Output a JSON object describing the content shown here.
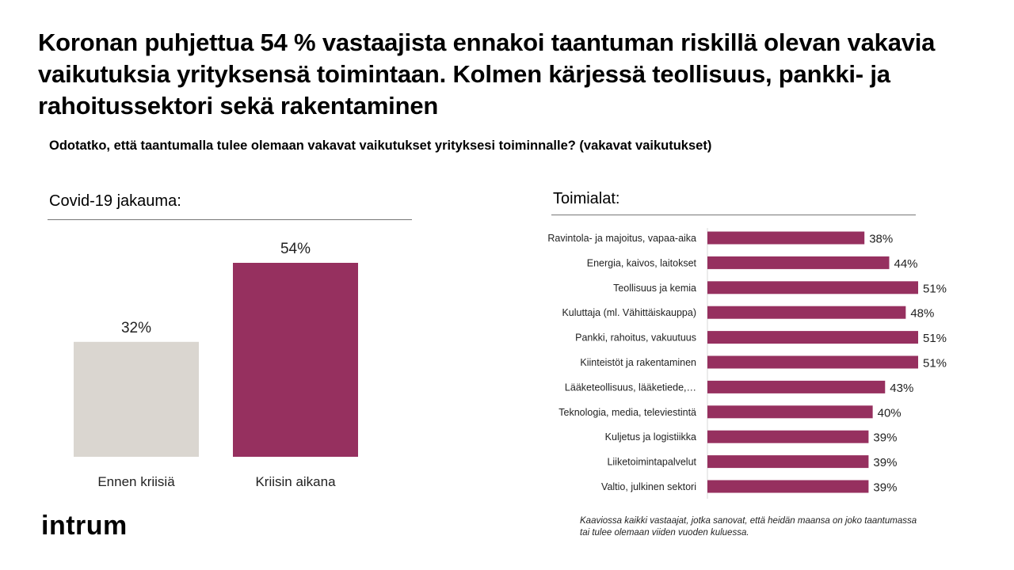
{
  "title": "Koronan puhjettua 54 % vastaajista ennakoi taantuman riskillä olevan vakavia vaikutuksia yrityksensä toimintaan. Kolmen kärjessä teollisuus, pankki- ja rahoitussektori sekä rakentaminen",
  "question": "Odotatko, että taantumalla tulee olemaan vakavat vaikutukset yrityksesi toiminnalle? (vakavat vaikutukset)",
  "footnote": "Kaaviossa kaikki vastaajat, jotka sanovat, että heidän maansa on joko taantumassa tai tulee olemaan viiden vuoden kuluessa.",
  "logo": "intrum",
  "colors": {
    "accent": "#96305f",
    "before": "#dad6d0"
  },
  "chart_data": [
    {
      "type": "bar",
      "title": "Covid-19 jakauma:",
      "categories": [
        "Ennen kriisiä",
        "Kriisin aikana"
      ],
      "values": [
        32,
        54
      ],
      "value_labels": [
        "32%",
        "54%"
      ],
      "ylim": [
        0,
        54
      ],
      "grid": false
    },
    {
      "type": "bar",
      "orientation": "horizontal",
      "title": "Toimialat:",
      "categories": [
        "Ravintola- ja majoitus, vapaa-aika",
        "Energia, kaivos, laitokset",
        "Teollisuus ja kemia",
        "Kuluttaja (ml. Vähittäiskauppa)",
        "Pankki, rahoitus, vakuutuus",
        "Kiinteistöt ja rakentaminen",
        "Lääketeollisuus, lääketiede,…",
        "Teknologia, media, televiestintä",
        "Kuljetus ja logistiikka",
        "Liiketoimintapalvelut",
        "Valtio, julkinen sektori"
      ],
      "values": [
        38,
        44,
        51,
        48,
        51,
        51,
        43,
        40,
        39,
        39,
        39
      ],
      "value_labels": [
        "38%",
        "44%",
        "51%",
        "48%",
        "51%",
        "51%",
        "43%",
        "40%",
        "39%",
        "39%",
        "39%"
      ],
      "xlim": [
        0,
        51
      ],
      "grid": false
    }
  ]
}
